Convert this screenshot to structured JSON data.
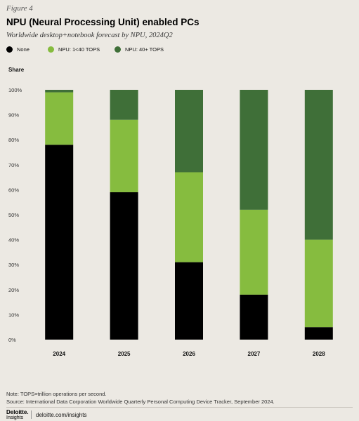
{
  "figure_label": "Figure 4",
  "title": "NPU (Neural Processing Unit) enabled PCs",
  "subtitle": "Worldwide desktop+notebook forecast by NPU, 2024Q2",
  "legend": [
    {
      "label": "None",
      "color": "#000000"
    },
    {
      "label": "NPU: 1<40 TOPS",
      "color": "#86bc3f"
    },
    {
      "label": "NPU: 40+ TOPS",
      "color": "#3f6f38"
    }
  ],
  "footnote": {
    "note": "Note: TOPS=trillion operations per second.",
    "source": "Source: International Data Corporation Worldwide Quarterly Personal Computing Device Tracker, September 2024."
  },
  "brand": {
    "name": "Deloitte.",
    "sub": "Insights",
    "url": "deloitte.com/insights"
  },
  "chart_data": {
    "type": "bar",
    "stacked": true,
    "ylabel": "Share",
    "xlabel": "",
    "ylim": [
      0,
      100
    ],
    "yticks": [
      "0%",
      "10%",
      "20%",
      "30%",
      "40%",
      "50%",
      "60%",
      "70%",
      "80%",
      "90%",
      "100%"
    ],
    "grid": false,
    "legend_position": "top",
    "categories": [
      "2024",
      "2025",
      "2026",
      "2027",
      "2028"
    ],
    "series": [
      {
        "name": "None",
        "color": "#000000",
        "values": [
          78,
          59,
          31,
          18,
          5
        ]
      },
      {
        "name": "NPU: 1<40 TOPS",
        "color": "#86bc3f",
        "values": [
          21,
          29,
          36,
          34,
          35
        ]
      },
      {
        "name": "NPU: 40+ TOPS",
        "color": "#3f6f38",
        "values": [
          1,
          12,
          33,
          48,
          60
        ]
      }
    ]
  }
}
